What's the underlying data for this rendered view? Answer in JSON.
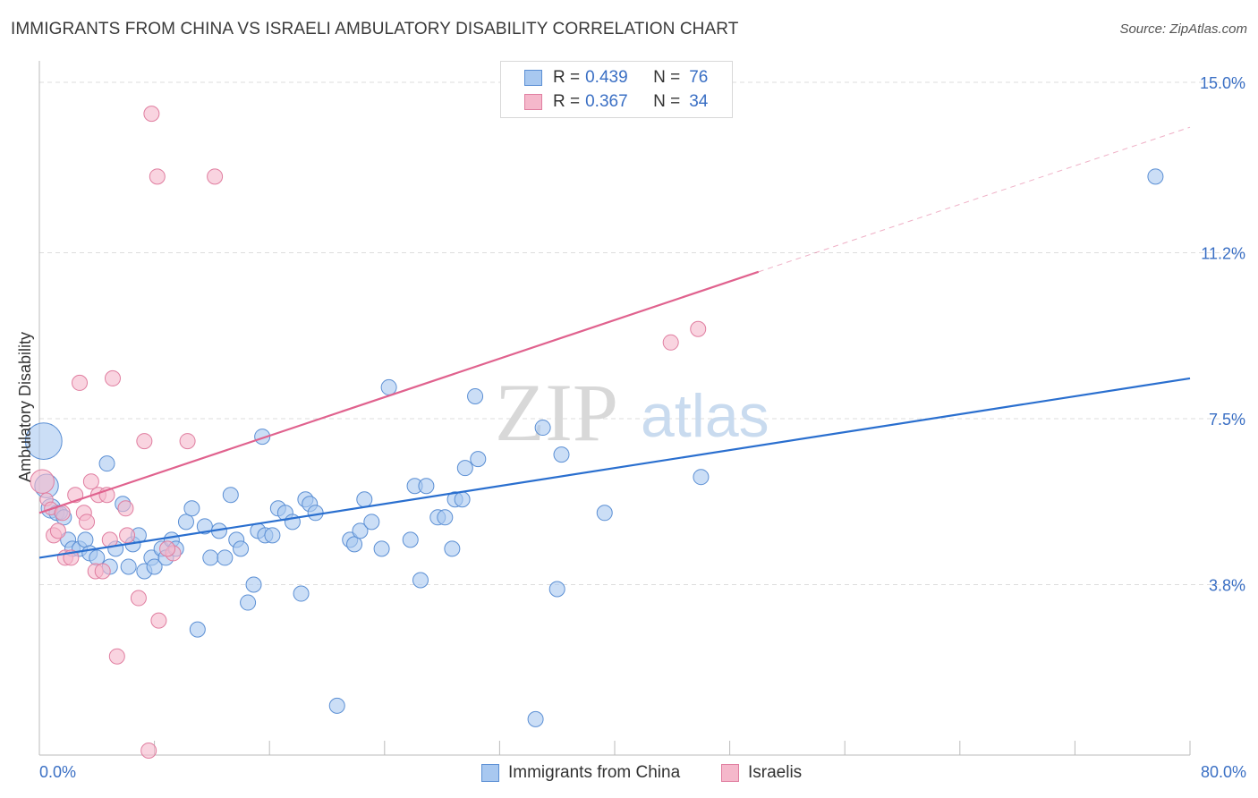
{
  "title": "IMMIGRANTS FROM CHINA VS ISRAELI AMBULATORY DISABILITY CORRELATION CHART",
  "source": "Source: ZipAtlas.com",
  "watermark": {
    "zip": "ZIP",
    "atlas": "atlas"
  },
  "legend": {
    "items": [
      {
        "r_label": "R =",
        "r_value": "0.439",
        "n_label": "N =",
        "n_value": "76",
        "fill": "#a8c8f0",
        "stroke": "#5b8fd4"
      },
      {
        "r_label": "R =",
        "r_value": "0.367",
        "n_label": "N =",
        "n_value": "34",
        "fill": "#f5b8cb",
        "stroke": "#e07ea0"
      }
    ]
  },
  "bottom_legend": {
    "china": "Immigrants from China",
    "israelis": "Israelis"
  },
  "colors": {
    "china_fill": "#a8c8f0",
    "china_stroke": "#5b8fd4",
    "china_line": "#2a6fcf",
    "israeli_fill": "#f5b8cb",
    "israeli_stroke": "#e07ea0",
    "israeli_line": "#e0628e",
    "axis_label": "#3a6fc4",
    "grid": "#dddddd"
  },
  "chart_data": {
    "type": "scatter",
    "title": "IMMIGRANTS FROM CHINA VS ISRAELI AMBULATORY DISABILITY CORRELATION CHART",
    "xlabel": "",
    "ylabel": "Ambulatory Disability",
    "xlim": [
      0,
      80
    ],
    "ylim": [
      0,
      15.4
    ],
    "x_tick_labels": {
      "left": "0.0%",
      "right": "80.0%"
    },
    "y_ticks": [
      {
        "value": 3.8,
        "label": "3.8%"
      },
      {
        "value": 7.5,
        "label": "7.5%"
      },
      {
        "value": 11.2,
        "label": "11.2%"
      },
      {
        "value": 15.0,
        "label": "15.0%"
      }
    ],
    "series": [
      {
        "name": "Immigrants from China",
        "trend": {
          "x0": 0,
          "y0": 4.4,
          "x1": 80,
          "y1": 8.4,
          "dashed_from": null
        },
        "points": [
          [
            0.3,
            7.0,
            34
          ],
          [
            0.5,
            6.0,
            22
          ],
          [
            0.8,
            5.5,
            18
          ],
          [
            1.2,
            5.4,
            14
          ],
          [
            1.5,
            5.4,
            12
          ],
          [
            1.7,
            5.3,
            10
          ],
          [
            2.0,
            4.8,
            10
          ],
          [
            2.3,
            4.6,
            10
          ],
          [
            2.8,
            4.6,
            10
          ],
          [
            3.2,
            4.8,
            10
          ],
          [
            3.5,
            4.5,
            10
          ],
          [
            4.0,
            4.4,
            10
          ],
          [
            4.7,
            6.5,
            10
          ],
          [
            4.9,
            4.2,
            10
          ],
          [
            5.3,
            4.6,
            10
          ],
          [
            5.8,
            5.6,
            10
          ],
          [
            6.2,
            4.2,
            10
          ],
          [
            6.5,
            4.7,
            10
          ],
          [
            6.9,
            4.9,
            10
          ],
          [
            7.3,
            4.1,
            10
          ],
          [
            7.8,
            4.4,
            10
          ],
          [
            8.0,
            4.2,
            10
          ],
          [
            8.5,
            4.6,
            10
          ],
          [
            8.8,
            4.4,
            10
          ],
          [
            9.2,
            4.8,
            10
          ],
          [
            9.5,
            4.6,
            10
          ],
          [
            10.2,
            5.2,
            10
          ],
          [
            10.6,
            5.5,
            10
          ],
          [
            11.0,
            2.8,
            10
          ],
          [
            11.5,
            5.1,
            10
          ],
          [
            11.9,
            4.4,
            10
          ],
          [
            12.5,
            5.0,
            10
          ],
          [
            12.9,
            4.4,
            10
          ],
          [
            13.3,
            5.8,
            10
          ],
          [
            13.7,
            4.8,
            10
          ],
          [
            14.0,
            4.6,
            10
          ],
          [
            14.5,
            3.4,
            10
          ],
          [
            14.9,
            3.8,
            10
          ],
          [
            15.2,
            5.0,
            10
          ],
          [
            15.5,
            7.1,
            10
          ],
          [
            15.7,
            4.9,
            10
          ],
          [
            16.2,
            4.9,
            10
          ],
          [
            16.6,
            5.5,
            10
          ],
          [
            17.1,
            5.4,
            10
          ],
          [
            17.6,
            5.2,
            10
          ],
          [
            18.2,
            3.6,
            10
          ],
          [
            18.5,
            5.7,
            10
          ],
          [
            18.8,
            5.6,
            10
          ],
          [
            19.2,
            5.4,
            10
          ],
          [
            20.7,
            1.1,
            10
          ],
          [
            21.6,
            4.8,
            10
          ],
          [
            21.9,
            4.7,
            10
          ],
          [
            22.3,
            5.0,
            10
          ],
          [
            22.6,
            5.7,
            10
          ],
          [
            23.1,
            5.2,
            10
          ],
          [
            23.8,
            4.6,
            10
          ],
          [
            24.3,
            8.2,
            10
          ],
          [
            25.8,
            4.8,
            10
          ],
          [
            26.1,
            6.0,
            10
          ],
          [
            26.5,
            3.9,
            10
          ],
          [
            26.9,
            6.0,
            10
          ],
          [
            27.7,
            5.3,
            10
          ],
          [
            28.2,
            5.3,
            10
          ],
          [
            28.7,
            4.6,
            10
          ],
          [
            28.9,
            5.7,
            10
          ],
          [
            29.6,
            6.4,
            10
          ],
          [
            30.3,
            8.0,
            10
          ],
          [
            30.5,
            6.6,
            10
          ],
          [
            34.5,
            0.8,
            10
          ],
          [
            35.0,
            7.3,
            10
          ],
          [
            36.0,
            3.7,
            10
          ],
          [
            36.3,
            6.7,
            10
          ],
          [
            39.3,
            5.4,
            10
          ],
          [
            46.0,
            6.2,
            10
          ],
          [
            77.6,
            12.9,
            10
          ],
          [
            29.4,
            5.7,
            10
          ]
        ]
      },
      {
        "name": "Israelis",
        "trend": {
          "x0": 0,
          "y0": 5.4,
          "x1": 80,
          "y1": 14.0,
          "dashed_from": 50
        },
        "points": [
          [
            0.2,
            6.1,
            22
          ],
          [
            0.5,
            5.7,
            12
          ],
          [
            0.8,
            5.5,
            12
          ],
          [
            1.0,
            4.9,
            10
          ],
          [
            1.3,
            5.0,
            10
          ],
          [
            1.6,
            5.4,
            10
          ],
          [
            1.8,
            4.4,
            10
          ],
          [
            2.2,
            4.4,
            10
          ],
          [
            2.5,
            5.8,
            10
          ],
          [
            2.8,
            8.3,
            10
          ],
          [
            3.1,
            5.4,
            10
          ],
          [
            3.3,
            5.2,
            10
          ],
          [
            3.6,
            6.1,
            10
          ],
          [
            3.9,
            4.1,
            10
          ],
          [
            4.1,
            5.8,
            10
          ],
          [
            4.4,
            4.1,
            10
          ],
          [
            4.7,
            5.8,
            10
          ],
          [
            4.9,
            4.8,
            10
          ],
          [
            5.1,
            8.4,
            10
          ],
          [
            5.4,
            2.2,
            10
          ],
          [
            6.0,
            5.5,
            10
          ],
          [
            6.1,
            4.9,
            10
          ],
          [
            6.9,
            3.5,
            10
          ],
          [
            7.3,
            7.0,
            10
          ],
          [
            7.6,
            0.1,
            10
          ],
          [
            7.8,
            14.3,
            10
          ],
          [
            8.2,
            12.9,
            10
          ],
          [
            8.3,
            3.0,
            10
          ],
          [
            9.3,
            4.5,
            10
          ],
          [
            10.3,
            7.0,
            10
          ],
          [
            12.2,
            12.9,
            10
          ],
          [
            43.9,
            9.2,
            10
          ],
          [
            45.8,
            9.5,
            10
          ],
          [
            8.9,
            4.6,
            10
          ]
        ]
      }
    ]
  }
}
